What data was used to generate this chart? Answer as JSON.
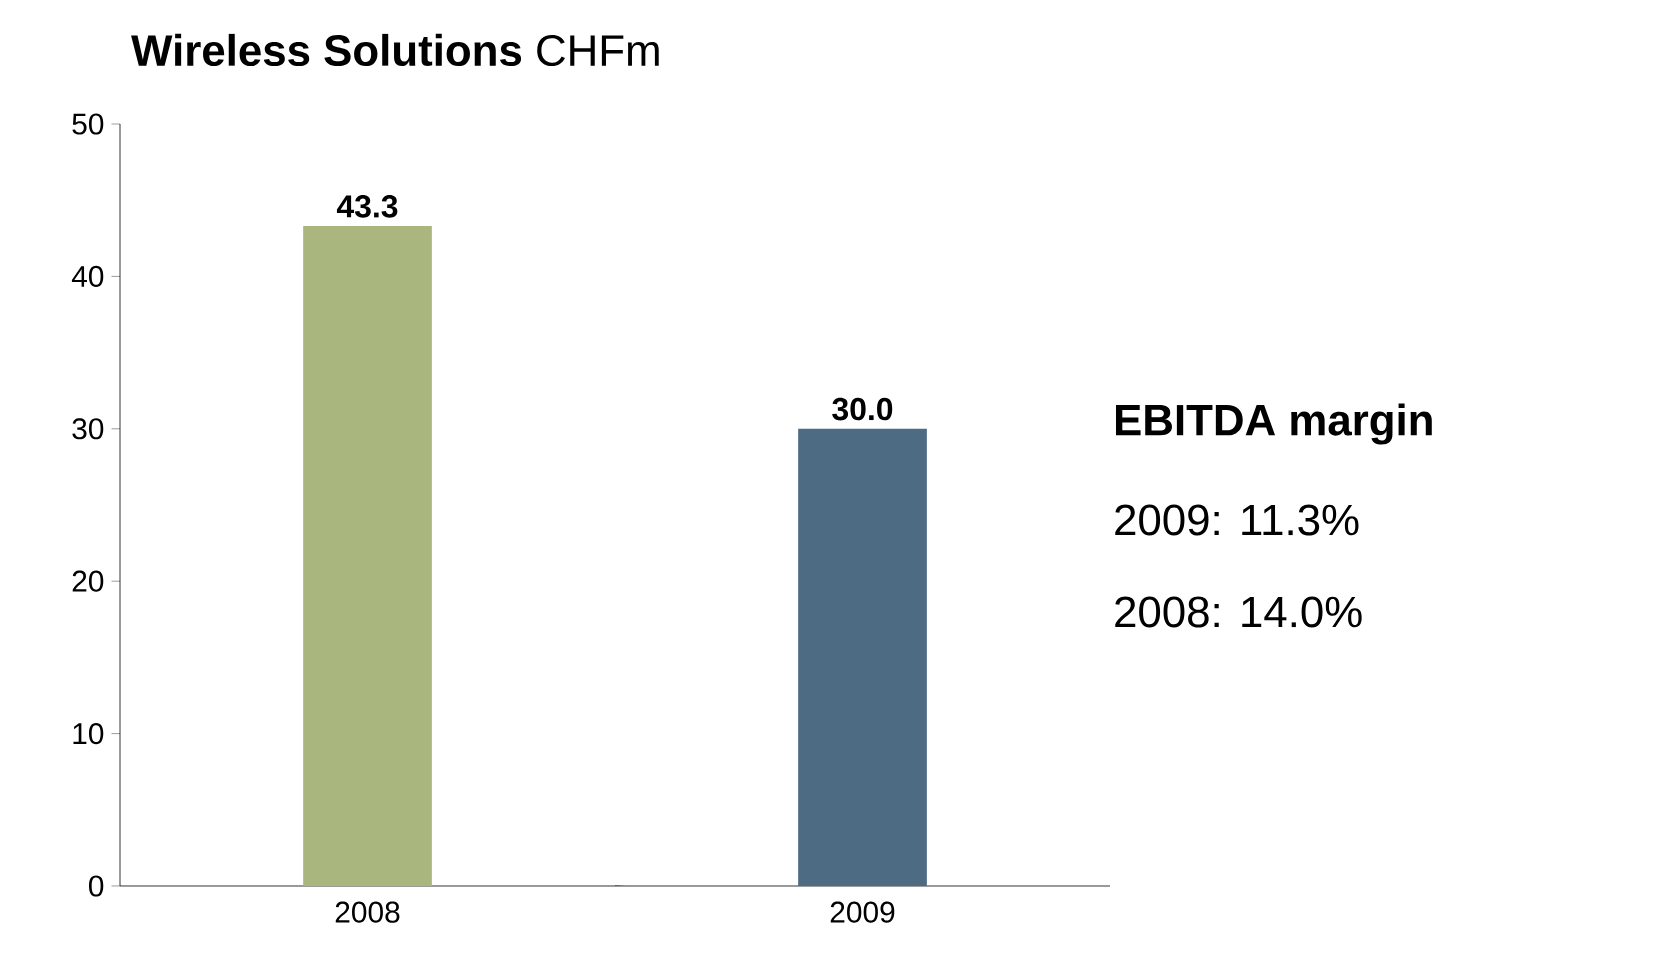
{
  "chart_data": {
    "type": "bar",
    "title": "**Wireless Solutions** CHFm",
    "categories": [
      "2008",
      "2009"
    ],
    "values": [
      43.3,
      30.0
    ],
    "colors": [
      "#a9b77e",
      "#4e6b84"
    ],
    "value_labels": [
      "43.3",
      "30.0"
    ],
    "ylim": [
      0,
      50
    ],
    "yticks": [
      0,
      10,
      20,
      30,
      40,
      50
    ],
    "annotations": [
      "EBITDA margin",
      "2009: 11.3%",
      "2008: 14.0%"
    ]
  }
}
